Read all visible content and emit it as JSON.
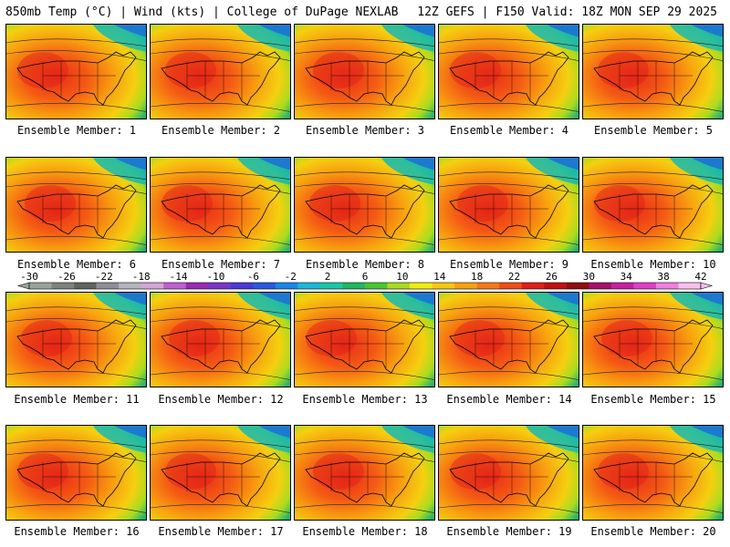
{
  "header": {
    "left": "850mb Temp (°C) | Wind (kts) | College of DuPage NEXLAB",
    "right": "12Z GEFS | F150 Valid: 18Z MON SEP 29 2025"
  },
  "panels": [
    {
      "label": "Ensemble Member: 1"
    },
    {
      "label": "Ensemble Member: 2"
    },
    {
      "label": "Ensemble Member: 3"
    },
    {
      "label": "Ensemble Member: 4"
    },
    {
      "label": "Ensemble Member: 5"
    },
    {
      "label": "Ensemble Member: 6"
    },
    {
      "label": "Ensemble Member: 7"
    },
    {
      "label": "Ensemble Member: 8"
    },
    {
      "label": "Ensemble Member: 9"
    },
    {
      "label": "Ensemble Member: 10"
    },
    {
      "label": "Ensemble Member: 11"
    },
    {
      "label": "Ensemble Member: 12"
    },
    {
      "label": "Ensemble Member: 13"
    },
    {
      "label": "Ensemble Member: 14"
    },
    {
      "label": "Ensemble Member: 15"
    },
    {
      "label": "Ensemble Member: 16"
    },
    {
      "label": "Ensemble Member: 17"
    },
    {
      "label": "Ensemble Member: 18"
    },
    {
      "label": "Ensemble Member: 19"
    },
    {
      "label": "Ensemble Member: 20"
    }
  ],
  "colorbar": {
    "ticks": [
      "-30",
      "-26",
      "-22",
      "-18",
      "-14",
      "-10",
      "-6",
      "-2",
      "2",
      "6",
      "10",
      "14",
      "18",
      "22",
      "26",
      "30",
      "34",
      "38",
      "42"
    ],
    "colors": [
      "#9aa39a",
      "#7d837d",
      "#5f645f",
      "#8e8e96",
      "#b4b4bc",
      "#d3a6d6",
      "#c060d0",
      "#9a2ab0",
      "#7a36c8",
      "#4a3ad8",
      "#2a58e0",
      "#1c86e8",
      "#1ab8d8",
      "#18c8a8",
      "#20b860",
      "#48c830",
      "#a8dc20",
      "#f0ec10",
      "#f8c810",
      "#f8a010",
      "#f87818",
      "#f04c18",
      "#e02018",
      "#c01010",
      "#901010",
      "#a8106a",
      "#c820a0",
      "#e040c8",
      "#f080e0",
      "#f8c0f0"
    ]
  }
}
